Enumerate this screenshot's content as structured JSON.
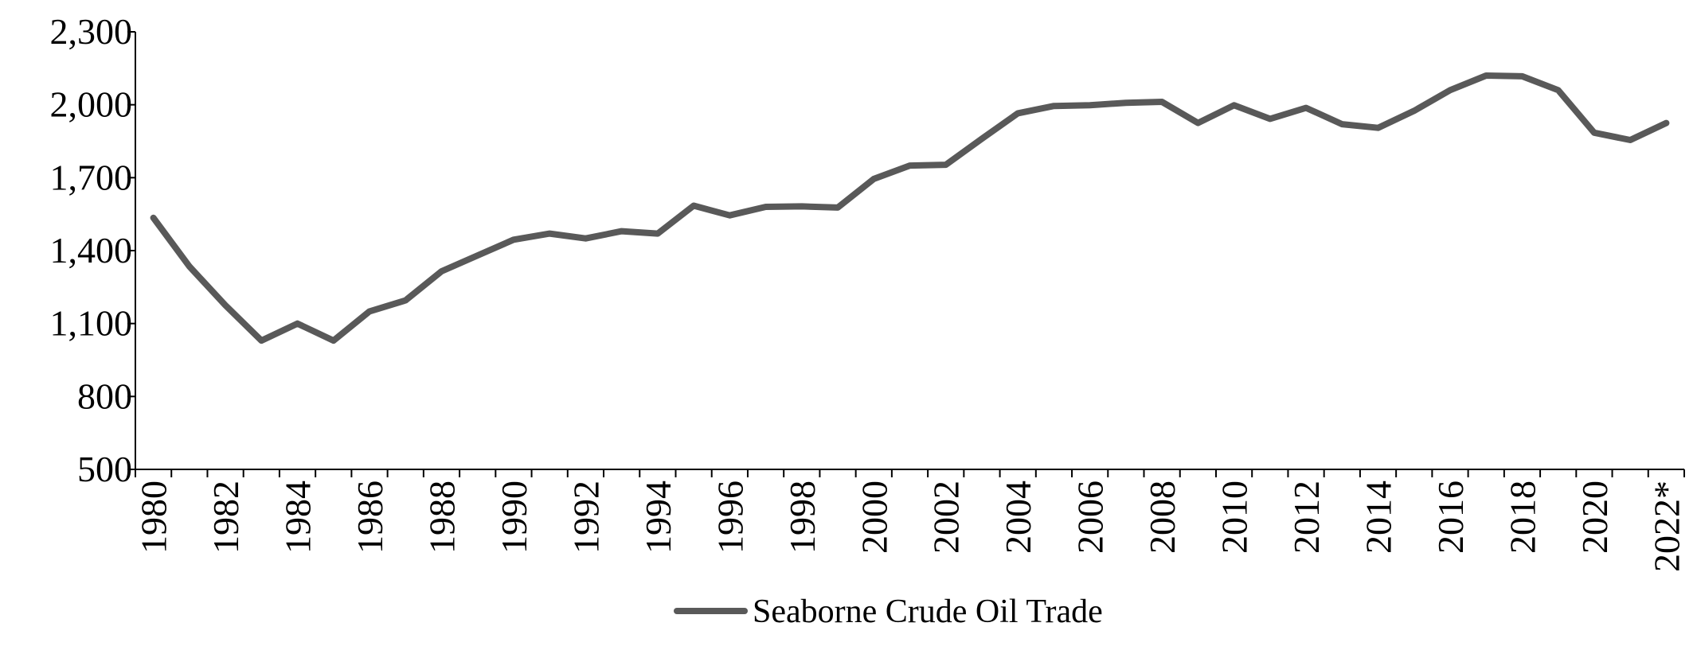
{
  "chart_data": {
    "type": "line",
    "title": "",
    "xlabel": "",
    "ylabel": "",
    "ylim": [
      500,
      2300
    ],
    "yticks": [
      500,
      800,
      1100,
      1400,
      1700,
      2000,
      2300
    ],
    "ytick_labels": [
      "500",
      "800",
      "1,100",
      "1,400",
      "1,700",
      "2,000",
      "2,300"
    ],
    "categories": [
      "1980",
      "1981",
      "1982",
      "1983",
      "1984",
      "1985",
      "1986",
      "1987",
      "1988",
      "1989",
      "1990",
      "1991",
      "1992",
      "1993",
      "1994",
      "1995",
      "1996",
      "1997",
      "1998",
      "1999",
      "2000",
      "2001",
      "2002",
      "2003",
      "2004",
      "2005",
      "2006",
      "2007",
      "2008",
      "2009",
      "2010",
      "2011",
      "2012",
      "2013",
      "2014",
      "2015",
      "2016",
      "2017",
      "2018",
      "2019",
      "2020",
      "2021",
      "2022*"
    ],
    "xtick_labels": [
      "1980",
      "",
      "1982",
      "",
      "1984",
      "",
      "1986",
      "",
      "1988",
      "",
      "1990",
      "",
      "1992",
      "",
      "1994",
      "",
      "1996",
      "",
      "1998",
      "",
      "2000",
      "",
      "2002",
      "",
      "2004",
      "",
      "2006",
      "",
      "2008",
      "",
      "2010",
      "",
      "2012",
      "",
      "2014",
      "",
      "2016",
      "",
      "2018",
      "",
      "2020",
      "",
      "2022*"
    ],
    "series": [
      {
        "name": "Seaborne Crude Oil Trade",
        "color": "#595959",
        "values": [
          1535,
          1335,
          1175,
          1030,
          1100,
          1030,
          1150,
          1195,
          1315,
          1380,
          1445,
          1470,
          1450,
          1480,
          1470,
          1585,
          1545,
          1580,
          1582,
          1577,
          1695,
          1750,
          1753,
          1860,
          1965,
          1995,
          1998,
          2008,
          2012,
          1925,
          1998,
          1942,
          1987,
          1920,
          1905,
          1975,
          2060,
          2120,
          2117,
          2060,
          1885,
          1855,
          1925
        ]
      }
    ],
    "grid": false,
    "legend_position": "bottom-center"
  }
}
